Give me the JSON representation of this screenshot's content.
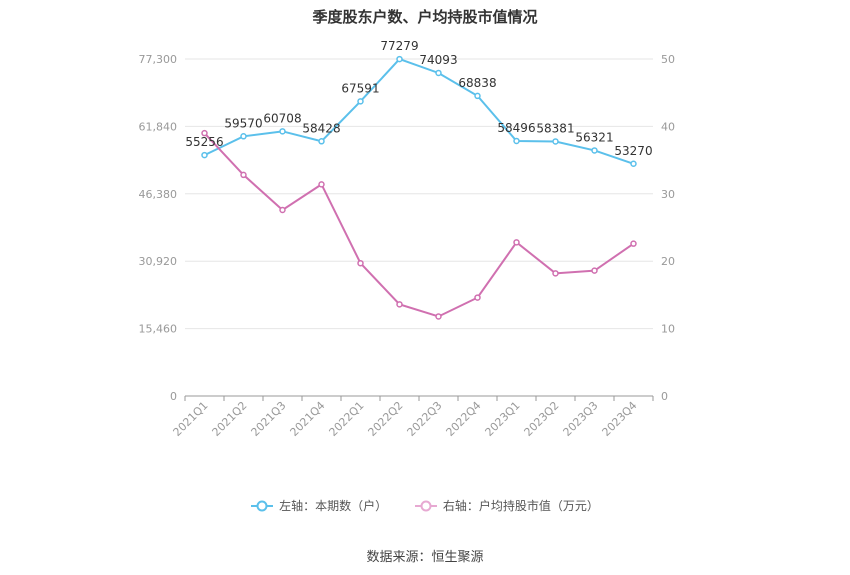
{
  "chart_data": {
    "type": "line",
    "title": "季度股东户数、户均持股市值情况",
    "categories": [
      "2021Q1",
      "2021Q2",
      "2021Q3",
      "2021Q4",
      "2022Q1",
      "2022Q2",
      "2022Q3",
      "2022Q4",
      "2023Q1",
      "2023Q2",
      "2023Q3",
      "2023Q4"
    ],
    "series": [
      {
        "name": "左轴：本期数（户）",
        "axis": "left",
        "color": "#5bc0eb",
        "values": [
          55256,
          59570,
          60708,
          58428,
          67591,
          77279,
          74093,
          68838,
          58496,
          58381,
          56321,
          53270
        ]
      },
      {
        "name": "右轴：户均持股市值（万元）",
        "axis": "right",
        "color": "#d070b0",
        "values": [
          39.0,
          32.8,
          27.6,
          31.4,
          19.7,
          13.6,
          11.8,
          14.6,
          22.8,
          18.2,
          18.6,
          22.6
        ]
      }
    ],
    "y_left": {
      "min": 0,
      "max": 77300,
      "ticks": [
        "0",
        "15,460",
        "30,920",
        "46,380",
        "61,840",
        "77,300"
      ]
    },
    "y_right": {
      "min": 0,
      "max": 50,
      "ticks": [
        "0",
        "10",
        "20",
        "30",
        "40",
        "50"
      ]
    },
    "grid": true,
    "legend_position": "bottom"
  },
  "source": "数据来源：恒生聚源"
}
